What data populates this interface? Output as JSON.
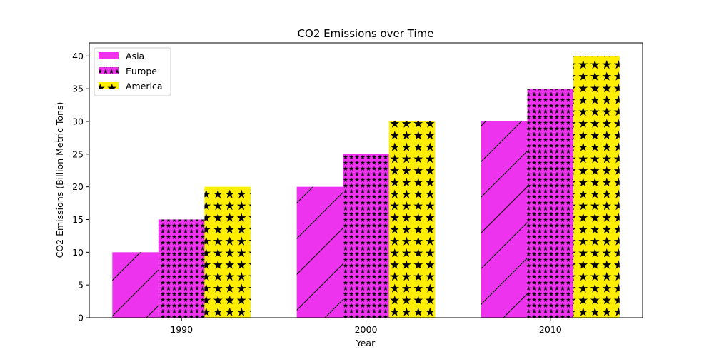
{
  "chart_data": {
    "type": "bar",
    "title": "CO2 Emissions over Time",
    "xlabel": "Year",
    "ylabel": "CO2 Emissions (Billion Metric Tons)",
    "categories": [
      "1990",
      "2000",
      "2010"
    ],
    "ylim": [
      0,
      42
    ],
    "yticks": [
      0,
      5,
      10,
      15,
      20,
      25,
      30,
      35,
      40
    ],
    "grid": false,
    "legend_position": "top-left",
    "series": [
      {
        "name": "Asia",
        "values": [
          10,
          20,
          30
        ],
        "color": "#ee33ee",
        "hatch": "diagonal-lines"
      },
      {
        "name": "Europe",
        "values": [
          15,
          25,
          35
        ],
        "color": "#ee33ee",
        "hatch": "small-stars"
      },
      {
        "name": "America",
        "values": [
          20,
          30,
          40
        ],
        "color": "#ffee00",
        "hatch": "large-stars"
      }
    ]
  }
}
